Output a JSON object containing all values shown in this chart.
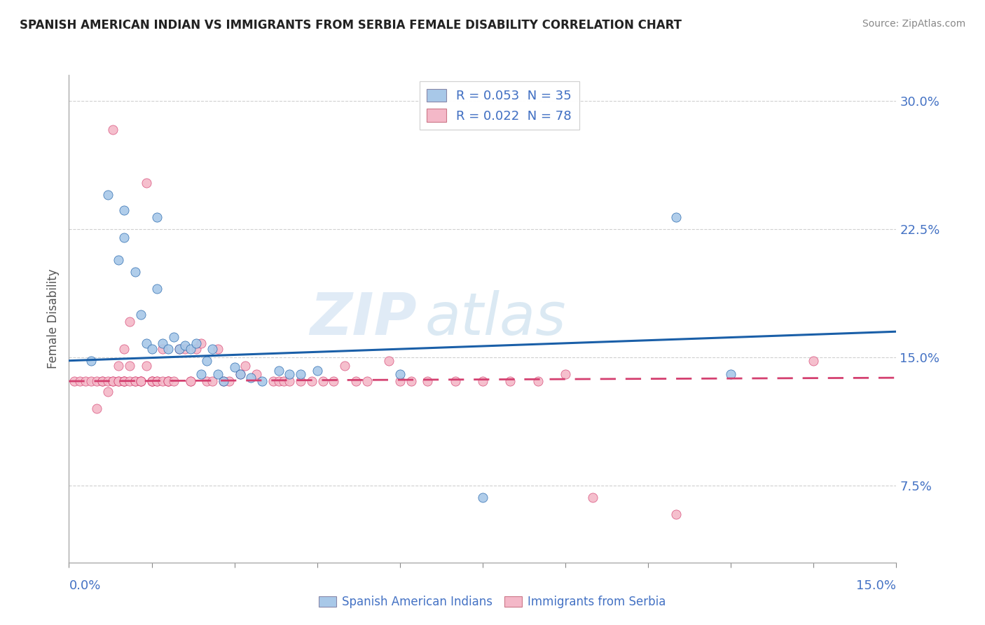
{
  "title": "SPANISH AMERICAN INDIAN VS IMMIGRANTS FROM SERBIA FEMALE DISABILITY CORRELATION CHART",
  "source": "Source: ZipAtlas.com",
  "ylabel": "Female Disability",
  "yticks": [
    "30.0%",
    "22.5%",
    "15.0%",
    "7.5%"
  ],
  "ytick_vals": [
    0.3,
    0.225,
    0.15,
    0.075
  ],
  "xmin": 0.0,
  "xmax": 0.15,
  "ymin": 0.03,
  "ymax": 0.315,
  "legend_r1": "R = 0.053  N = 35",
  "legend_r2": "R = 0.022  N = 78",
  "color_blue": "#a8c8e8",
  "color_pink": "#f4b8c8",
  "trendline_blue": "#1a5fa8",
  "trendline_pink": "#d44070",
  "scatter_blue_x": [
    0.004,
    0.007,
    0.009,
    0.01,
    0.01,
    0.012,
    0.013,
    0.014,
    0.015,
    0.016,
    0.016,
    0.017,
    0.018,
    0.019,
    0.02,
    0.021,
    0.022,
    0.023,
    0.024,
    0.025,
    0.026,
    0.027,
    0.028,
    0.03,
    0.031,
    0.033,
    0.035,
    0.038,
    0.04,
    0.042,
    0.045,
    0.06,
    0.075,
    0.11,
    0.12
  ],
  "scatter_blue_y": [
    0.148,
    0.245,
    0.207,
    0.236,
    0.22,
    0.2,
    0.175,
    0.158,
    0.155,
    0.232,
    0.19,
    0.158,
    0.155,
    0.162,
    0.155,
    0.157,
    0.155,
    0.158,
    0.14,
    0.148,
    0.155,
    0.14,
    0.136,
    0.144,
    0.14,
    0.138,
    0.136,
    0.142,
    0.14,
    0.14,
    0.142,
    0.14,
    0.068,
    0.232,
    0.14
  ],
  "scatter_pink_x": [
    0.001,
    0.002,
    0.003,
    0.004,
    0.005,
    0.005,
    0.006,
    0.006,
    0.007,
    0.007,
    0.008,
    0.008,
    0.008,
    0.009,
    0.009,
    0.009,
    0.01,
    0.01,
    0.01,
    0.01,
    0.011,
    0.011,
    0.011,
    0.012,
    0.012,
    0.013,
    0.013,
    0.013,
    0.014,
    0.014,
    0.015,
    0.015,
    0.015,
    0.016,
    0.016,
    0.017,
    0.017,
    0.018,
    0.018,
    0.018,
    0.019,
    0.02,
    0.021,
    0.022,
    0.022,
    0.023,
    0.024,
    0.025,
    0.026,
    0.027,
    0.028,
    0.029,
    0.031,
    0.032,
    0.034,
    0.037,
    0.038,
    0.039,
    0.04,
    0.042,
    0.044,
    0.046,
    0.048,
    0.05,
    0.052,
    0.054,
    0.058,
    0.06,
    0.062,
    0.065,
    0.07,
    0.075,
    0.08,
    0.085,
    0.09,
    0.095,
    0.11,
    0.135
  ],
  "scatter_pink_y": [
    0.136,
    0.136,
    0.136,
    0.136,
    0.136,
    0.12,
    0.136,
    0.136,
    0.136,
    0.13,
    0.136,
    0.136,
    0.283,
    0.136,
    0.136,
    0.145,
    0.155,
    0.136,
    0.136,
    0.136,
    0.171,
    0.145,
    0.136,
    0.136,
    0.136,
    0.136,
    0.136,
    0.136,
    0.252,
    0.145,
    0.136,
    0.136,
    0.136,
    0.136,
    0.136,
    0.155,
    0.136,
    0.136,
    0.136,
    0.136,
    0.136,
    0.155,
    0.155,
    0.136,
    0.136,
    0.155,
    0.158,
    0.136,
    0.136,
    0.155,
    0.136,
    0.136,
    0.14,
    0.145,
    0.14,
    0.136,
    0.136,
    0.136,
    0.136,
    0.136,
    0.136,
    0.136,
    0.136,
    0.145,
    0.136,
    0.136,
    0.148,
    0.136,
    0.136,
    0.136,
    0.136,
    0.136,
    0.136,
    0.136,
    0.14,
    0.068,
    0.058,
    0.148
  ],
  "watermark_text": "ZIP",
  "watermark_text2": "atlas",
  "background_color": "#ffffff",
  "grid_color": "#d0d0d0"
}
